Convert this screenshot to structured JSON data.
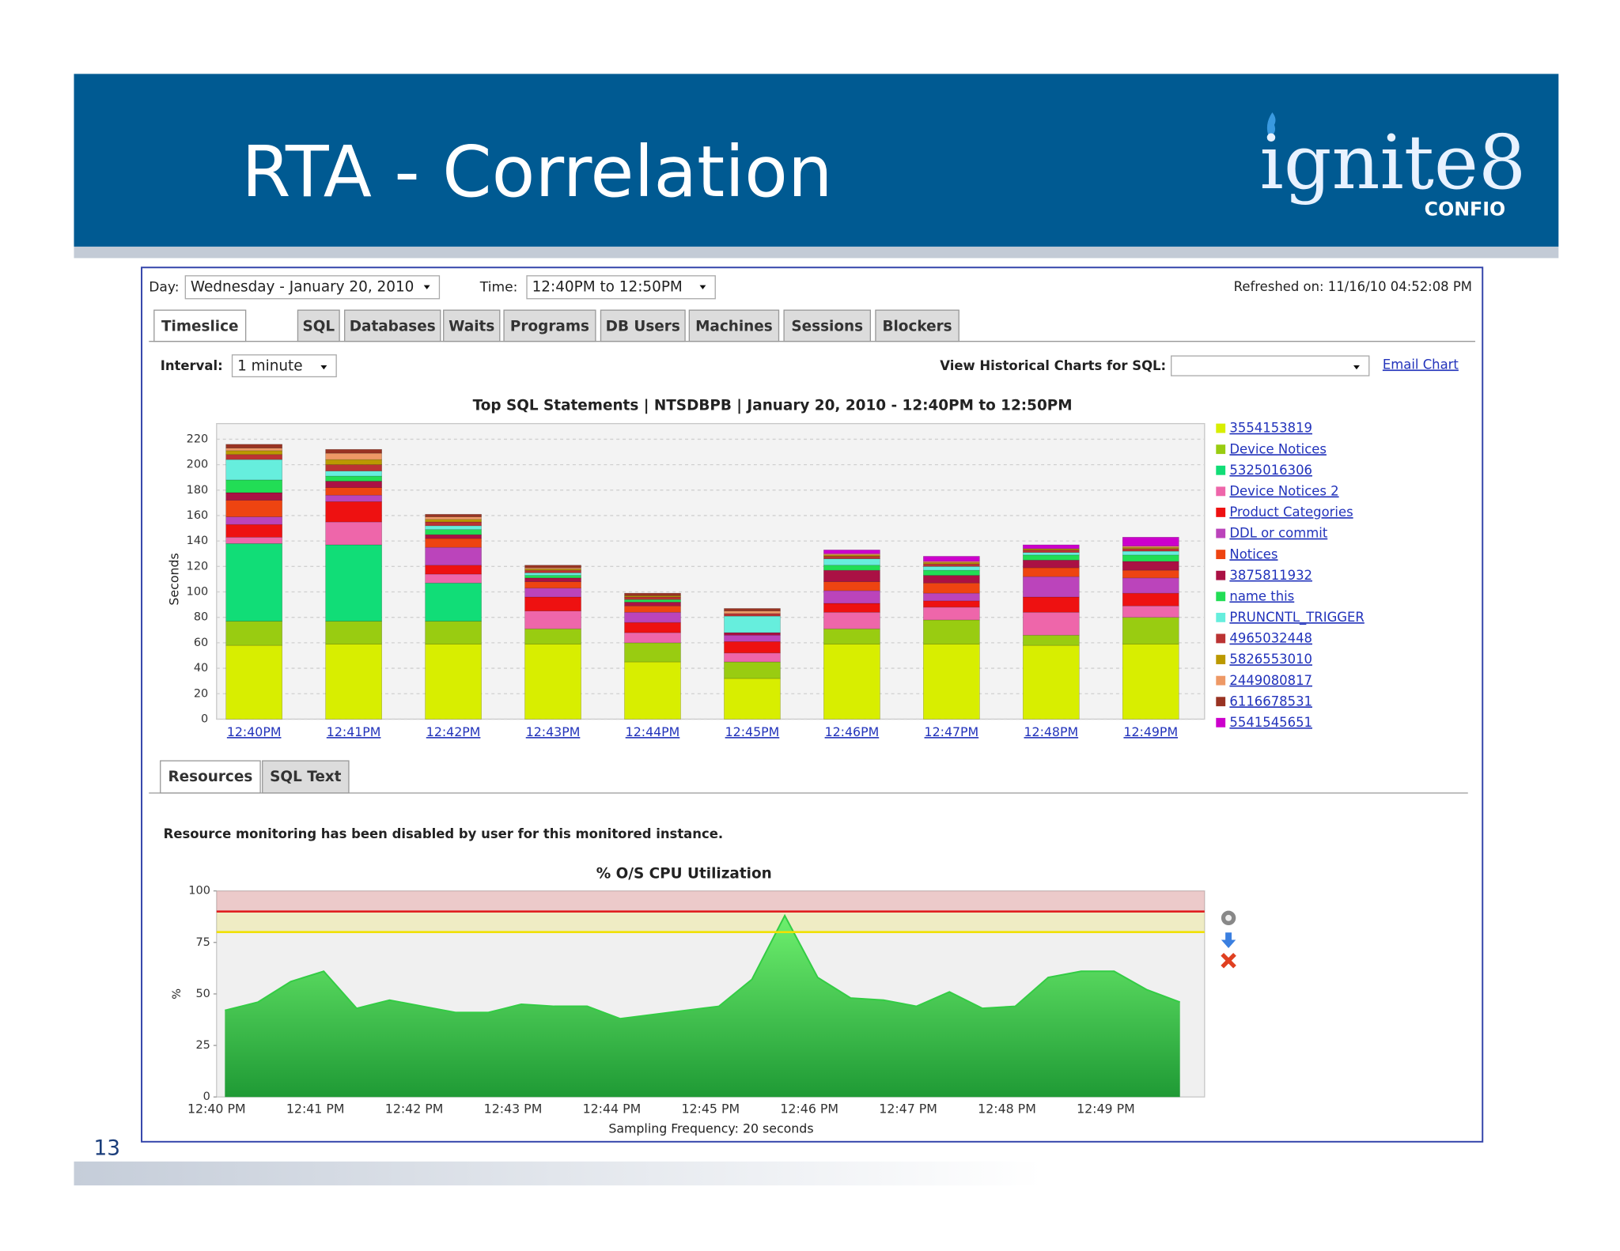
{
  "slide": {
    "title": "RTA - Correlation",
    "logo": "ignite8",
    "logo_sub": "CONFIO",
    "page_number": "13"
  },
  "toolbar": {
    "day_label": "Day:",
    "day": "Wednesday - January 20, 2010",
    "time_label": "Time:",
    "time": "12:40PM to 12:50PM",
    "refreshed": "Refreshed on: 11/16/10 04:52:08 PM"
  },
  "tabs": [
    "Timeslice",
    "SQL",
    "Databases",
    "Waits",
    "Programs",
    "DB Users",
    "Machines",
    "Sessions",
    "Blockers"
  ],
  "options": {
    "interval_label": "Interval:",
    "interval": "1 minute",
    "historical_label": "View Historical Charts for SQL:",
    "email_chart": "Email Chart"
  },
  "subtabs": [
    "Resources",
    "SQL Text"
  ],
  "notice": "Resource monitoring has been disabled by user for this monitored instance.",
  "chart_data": [
    {
      "type": "bar",
      "stacked": true,
      "title": "Top SQL Statements  |  NTSDBPB  |  January 20, 2010 - 12:40PM to 12:50PM",
      "y_label": "Seconds",
      "categories": [
        "12:40PM",
        "12:41PM",
        "12:42PM",
        "12:43PM",
        "12:44PM",
        "12:45PM",
        "12:46PM",
        "12:47PM",
        "12:48PM",
        "12:49PM"
      ],
      "series": [
        {
          "name": "3554153819",
          "color": "#d8ee00",
          "values": [
            58,
            59,
            59,
            59,
            45,
            32,
            59,
            59,
            58,
            59
          ]
        },
        {
          "name": "Device Notices",
          "color": "#99cc11",
          "values": [
            19,
            18,
            18,
            12,
            15,
            13,
            12,
            19,
            8,
            21
          ]
        },
        {
          "name": "5325016306",
          "color": "#11dd77",
          "values": [
            61,
            60,
            30,
            0,
            0,
            0,
            0,
            0,
            0,
            0
          ]
        },
        {
          "name": "Device Notices 2",
          "color": "#ee66aa",
          "values": [
            5,
            18,
            7,
            14,
            8,
            7,
            13,
            10,
            18,
            9
          ]
        },
        {
          "name": "Product Categories",
          "color": "#ee1111",
          "values": [
            10,
            16,
            7,
            11,
            8,
            9,
            7,
            5,
            12,
            10
          ]
        },
        {
          "name": "DDL or commit",
          "color": "#bb44bb",
          "values": [
            6,
            5,
            14,
            7,
            8,
            5,
            10,
            6,
            16,
            12
          ]
        },
        {
          "name": "Notices",
          "color": "#ee4411",
          "values": [
            13,
            6,
            7,
            5,
            5,
            0,
            7,
            8,
            7,
            6
          ]
        },
        {
          "name": "3875811932",
          "color": "#aa1144",
          "values": [
            6,
            5,
            3,
            3,
            3,
            2,
            9,
            6,
            6,
            7
          ]
        },
        {
          "name": "name this",
          "color": "#22dd55",
          "values": [
            10,
            4,
            4,
            2,
            2,
            0,
            4,
            4,
            4,
            5
          ]
        },
        {
          "name": "PRUNCNTL_TRIGGER",
          "color": "#66eedd",
          "values": [
            16,
            4,
            3,
            2,
            0,
            13,
            5,
            3,
            2,
            3
          ]
        },
        {
          "name": "4965032448",
          "color": "#bb3333",
          "values": [
            4,
            5,
            3,
            2,
            2,
            2,
            2,
            2,
            2,
            2
          ]
        },
        {
          "name": "5826553010",
          "color": "#bb9900",
          "values": [
            3,
            4,
            2,
            1,
            1,
            0,
            1,
            1,
            1,
            1
          ]
        },
        {
          "name": "2449080817",
          "color": "#ee9966",
          "values": [
            2,
            5,
            2,
            1,
            0,
            2,
            1,
            1,
            0,
            1
          ]
        },
        {
          "name": "6116678531",
          "color": "#993322",
          "values": [
            3,
            3,
            2,
            2,
            2,
            2,
            0,
            0,
            0,
            0
          ]
        },
        {
          "name": "5541545651",
          "color": "#cc00cc",
          "values": [
            0,
            0,
            0,
            0,
            0,
            0,
            3,
            4,
            3,
            7
          ]
        }
      ],
      "ylim": [
        0,
        220
      ],
      "yticks": [
        0,
        20,
        40,
        60,
        80,
        100,
        120,
        140,
        160,
        180,
        200,
        220
      ],
      "grid": true,
      "legend": "right"
    },
    {
      "type": "area",
      "title": "% O/S CPU Utilization",
      "x_label": "Sampling Frequency: 20 seconds",
      "y_label": "%",
      "categories": [
        "12:40 PM",
        null,
        null,
        "12:41 PM",
        null,
        null,
        "12:42 PM",
        null,
        null,
        "12:43 PM",
        null,
        null,
        "12:44 PM",
        null,
        null,
        "12:45 PM",
        null,
        null,
        "12:46 PM",
        null,
        null,
        "12:47 PM",
        null,
        null,
        "12:48 PM",
        null,
        null,
        "12:49 PM",
        null,
        null
      ],
      "values": [
        42,
        46,
        56,
        61,
        43,
        47,
        44,
        41,
        41,
        45,
        44,
        44,
        38,
        40,
        42,
        44,
        57,
        88,
        58,
        48,
        47,
        44,
        51,
        43,
        44,
        58,
        61,
        61,
        52,
        46
      ],
      "color": "#33cc44",
      "ylim": [
        0,
        100
      ],
      "yticks": [
        0,
        25,
        50,
        75,
        100
      ],
      "thresholds": [
        {
          "value": 90,
          "color": "#e02020"
        },
        {
          "value": 80,
          "color": "#f0e000"
        }
      ]
    }
  ]
}
